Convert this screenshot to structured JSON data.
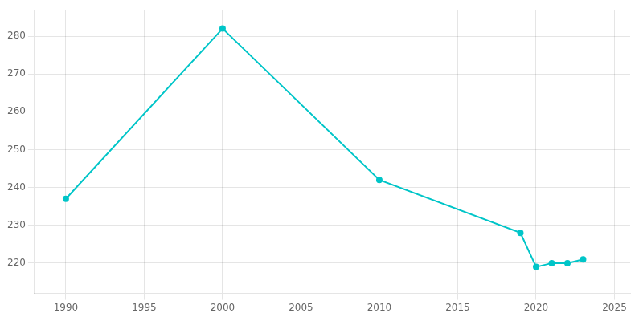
{
  "chart_data": {
    "type": "line",
    "x": [
      1990,
      2000,
      2010,
      2019,
      2020,
      2021,
      2022,
      2023
    ],
    "values": [
      237,
      282,
      242,
      228,
      219,
      220,
      220,
      221
    ],
    "color": "#00c5c8",
    "marker": "circle",
    "xlim": [
      1988,
      2026
    ],
    "ylim": [
      212,
      287
    ],
    "xticks": [
      1990,
      1995,
      2000,
      2005,
      2010,
      2015,
      2020,
      2025
    ],
    "yticks": [
      220,
      230,
      240,
      250,
      260,
      270,
      280
    ],
    "grid": true
  }
}
